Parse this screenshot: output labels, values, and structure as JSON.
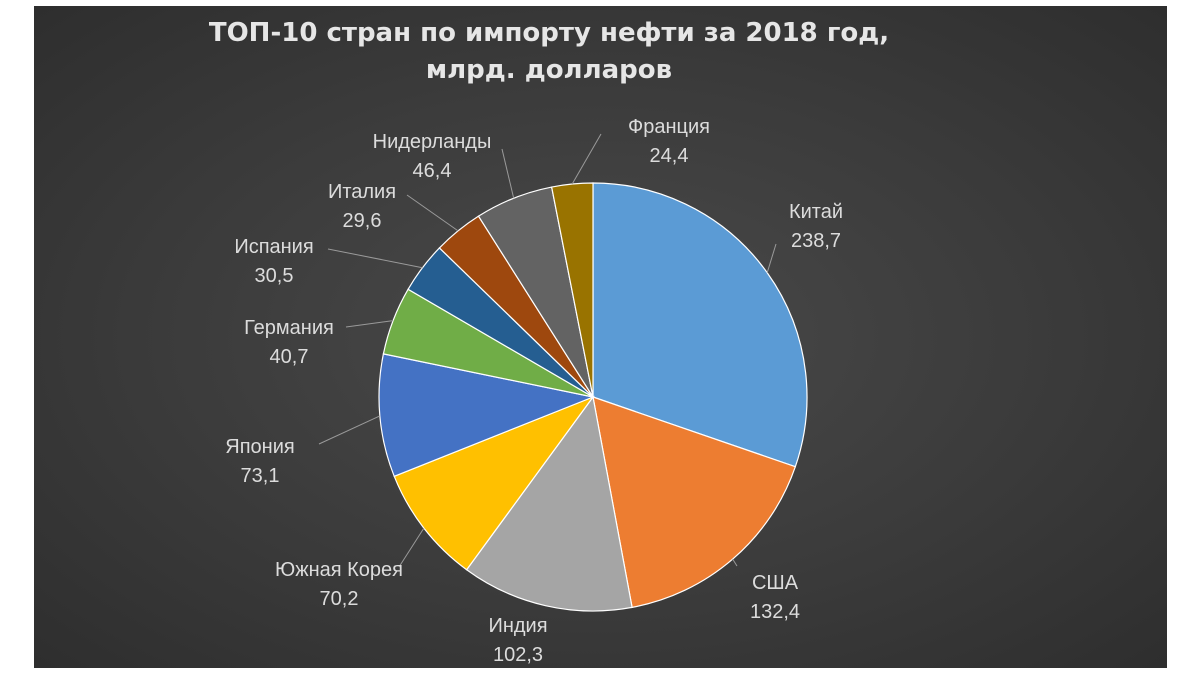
{
  "chart_data": {
    "type": "pie",
    "title_lines": [
      "ТОП-10 стран по импорту нефти за 2018 год,",
      "млрд. долларов"
    ],
    "start_angle_deg": 0,
    "direction": "clockwise",
    "slices": [
      {
        "label": "Китай",
        "value_label": "238,7",
        "value": 238.7,
        "color": "#5b9bd5"
      },
      {
        "label": "США",
        "value_label": "132,4",
        "value": 132.4,
        "color": "#ed7d31"
      },
      {
        "label": "Индия",
        "value_label": "102,3",
        "value": 102.3,
        "color": "#a5a5a5"
      },
      {
        "label": "Южная Корея",
        "value_label": "70,2",
        "value": 70.2,
        "color": "#ffc000"
      },
      {
        "label": "Япония",
        "value_label": "73,1",
        "value": 73.1,
        "color": "#4472c4"
      },
      {
        "label": "Германия",
        "value_label": "40,7",
        "value": 40.7,
        "color": "#70ad47"
      },
      {
        "label": "Испания",
        "value_label": "30,5",
        "value": 30.5,
        "color": "#255e91"
      },
      {
        "label": "Италия",
        "value_label": "29,6",
        "value": 29.6,
        "color": "#9e480e"
      },
      {
        "label": "Нидерланды",
        "value_label": "46,4",
        "value": 46.4,
        "color": "#636363"
      },
      {
        "label": "Франция",
        "value_label": "24,4",
        "value": 24.4,
        "color": "#997300"
      }
    ]
  }
}
